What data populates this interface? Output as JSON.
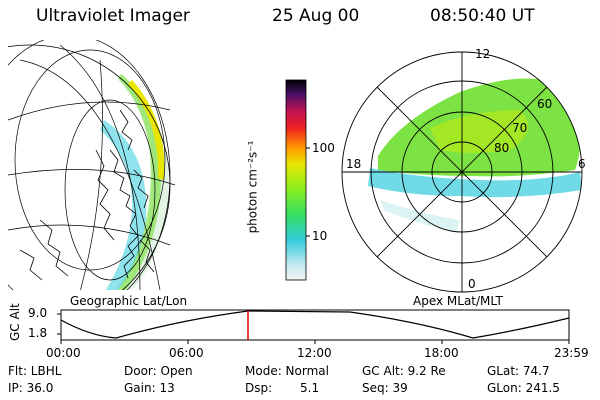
{
  "header": {
    "instrument": "Ultraviolet Imager",
    "date": "25 Aug 00",
    "time": "08:50:40 UT"
  },
  "panels": {
    "left_label": "Geographic Lat/Lon",
    "right_label": "Apex MLat/MLT"
  },
  "colorbar": {
    "label": "photon cm⁻²s⁻¹",
    "ticks": [
      "100",
      "10"
    ]
  },
  "polar": {
    "mlt_labels": {
      "top": "12",
      "left": "18",
      "right": "6",
      "bottom": "0"
    },
    "lat_labels": [
      "60",
      "70",
      "80"
    ]
  },
  "timeline": {
    "ylabel": "GC Alt",
    "yticks": [
      "9.0",
      "1.8"
    ],
    "xticks": [
      "00:00",
      "06:00",
      "12:00",
      "18:00",
      "23:59"
    ],
    "cursor_time": "08:50"
  },
  "info": {
    "filter": "Flt: LBHL",
    "ip": "IP: 36.0",
    "door": "Door: Open",
    "gain": "Gain: 13",
    "mode": "Mode: Normal",
    "dsp_label": "Dsp:",
    "dsp_value": "5.1",
    "gcalt": "GC Alt: 9.2 Re",
    "seq": "Seq: 39",
    "glat": "GLat:  74.7",
    "glon": "GLon: 241.5"
  },
  "colors": {
    "aurora_green": "#66dd22",
    "aurora_yellow": "#e8e600",
    "aurora_cyan": "#33ccdd",
    "cursor_red": "#dd0000"
  }
}
